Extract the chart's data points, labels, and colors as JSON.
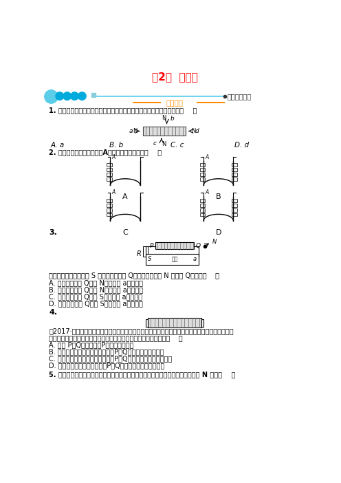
{
  "title": "第2节  电生磁",
  "title_color": "#FF0000",
  "bg_color": "#FFFFFF",
  "label1": "知能演练提升",
  "label2": "能力提升",
  "q1": "1. 如图所示，通电螺线管周围的小磁针静止时，小磁针指向不正确的是（    ）",
  "q1_options": [
    "A. a",
    "B. b",
    "C. c",
    "D. d"
  ],
  "q2": "2. 如图所示，闭合开关后，A点磁场方向向左的是（    ）",
  "q3_label": "3.",
  "q3_text": "如图所示，当闭合开关 S 后，通电螺线管 Q端附近的小磁针 N 极转向 Q端，则（    ）",
  "q3_options": [
    "A. 通电螺线管的 Q端为 N极，电源 a端为正极",
    "B. 通电螺线管的 Q端为 N极，电源 a端为负极",
    "C. 通电螺线管的 Q端为 S极，电源 a端为正极",
    "D. 通电螺线管的 Q端为 S极，电源 a端为负极"
  ],
  "q4_label": "4.",
  "q4_intro1": "（2017·山西中考）小明在一块有机玻璃板上安装了一个用导线绕成的螺线管，在板面上均匀撒满鐵",
  "q4_intro2": "屑，通电后轻磁玻璃板，鐵屑的排列如图所示。下列说法正确的是（    ）",
  "q4_options": [
    "A. 图中 P、Q两点相比，P点处的磁场较强",
    "B. 若只改变螺线管中的电流方向，P、Q两点处的磁场会减弱",
    "C. 若只改变螺线管中的电流方向，P、Q两点处的磁场方向会改变",
    "D. 若只增大螺线管中的电流，P、Q两点处的磁场方向会改变"
  ],
  "q5": "5. 如图所示，将一根导线弯成圆形，在其里面放置一个小磁针，通电后，小磁针的 N 极将（    ）"
}
